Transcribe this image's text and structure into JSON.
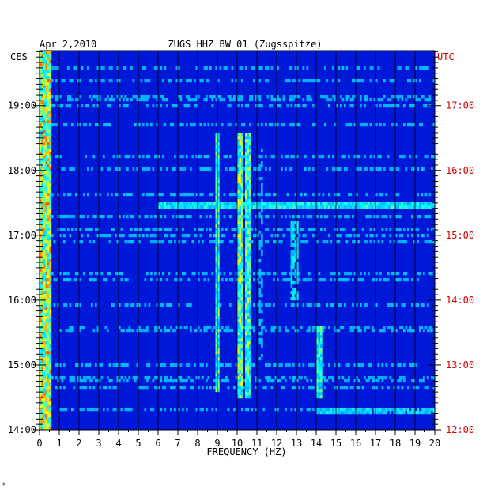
{
  "chart_data": {
    "type": "heatmap",
    "date": "Apr 2,2010",
    "title": "ZUGS HHZ BW 01 (Zugsspitze)",
    "xlabel": "FREQUENCY (HZ)",
    "left_zone": "CES",
    "right_zone": "UTC",
    "xlim": [
      0,
      20
    ],
    "x_ticks": [
      "0",
      "1",
      "2",
      "3",
      "4",
      "5",
      "6",
      "7",
      "8",
      "9",
      "10",
      "11",
      "12",
      "13",
      "14",
      "15",
      "16",
      "17",
      "18",
      "19",
      "20"
    ],
    "left_time_ticks": [
      {
        "label": "19:00",
        "hour": 19
      },
      {
        "label": "18:00",
        "hour": 18
      },
      {
        "label": "17:00",
        "hour": 17
      },
      {
        "label": "16:00",
        "hour": 16
      },
      {
        "label": "15:00",
        "hour": 15
      },
      {
        "label": "14:00",
        "hour": 14
      }
    ],
    "right_time_ticks": [
      {
        "label": "17:00",
        "hour": 17
      },
      {
        "label": "16:00",
        "hour": 16
      },
      {
        "label": "15:00",
        "hour": 15
      },
      {
        "label": "14:00",
        "hour": 14
      },
      {
        "label": "13:00",
        "hour": 13
      },
      {
        "label": "12:00",
        "hour": 12
      }
    ],
    "time_range_local": [
      14.0,
      19.85
    ],
    "colorscale": [
      "#000080",
      "#0018d8",
      "#00a0ff",
      "#00ffff",
      "#ffff00",
      "#ff0000"
    ],
    "features": [
      {
        "kind": "band",
        "freq": 0.3,
        "width": 0.6,
        "t0": 14.0,
        "t1": 19.85,
        "level": 0.85
      },
      {
        "kind": "band",
        "freq": 9.0,
        "width": 0.3,
        "t0": 14.6,
        "t1": 18.6,
        "level": 0.7
      },
      {
        "kind": "band",
        "freq": 10.2,
        "width": 0.3,
        "t0": 14.5,
        "t1": 18.6,
        "level": 0.75
      },
      {
        "kind": "band",
        "freq": 10.6,
        "width": 0.3,
        "t0": 14.5,
        "t1": 18.6,
        "level": 0.7
      },
      {
        "kind": "band",
        "freq": 11.2,
        "width": 0.2,
        "t0": 15.0,
        "t1": 18.4,
        "level": 0.45
      },
      {
        "kind": "band",
        "freq": 14.2,
        "width": 0.3,
        "t0": 14.5,
        "t1": 15.6,
        "level": 0.65
      },
      {
        "kind": "band",
        "freq": 12.9,
        "width": 0.4,
        "t0": 16.0,
        "t1": 17.2,
        "level": 0.55
      },
      {
        "kind": "line",
        "time": 17.45,
        "f0": 6.0,
        "f1": 20.0,
        "level": 0.6
      },
      {
        "kind": "line",
        "time": 14.3,
        "f0": 14.0,
        "f1": 20.0,
        "level": 0.55
      }
    ]
  },
  "footer": {
    "mark": "*"
  }
}
